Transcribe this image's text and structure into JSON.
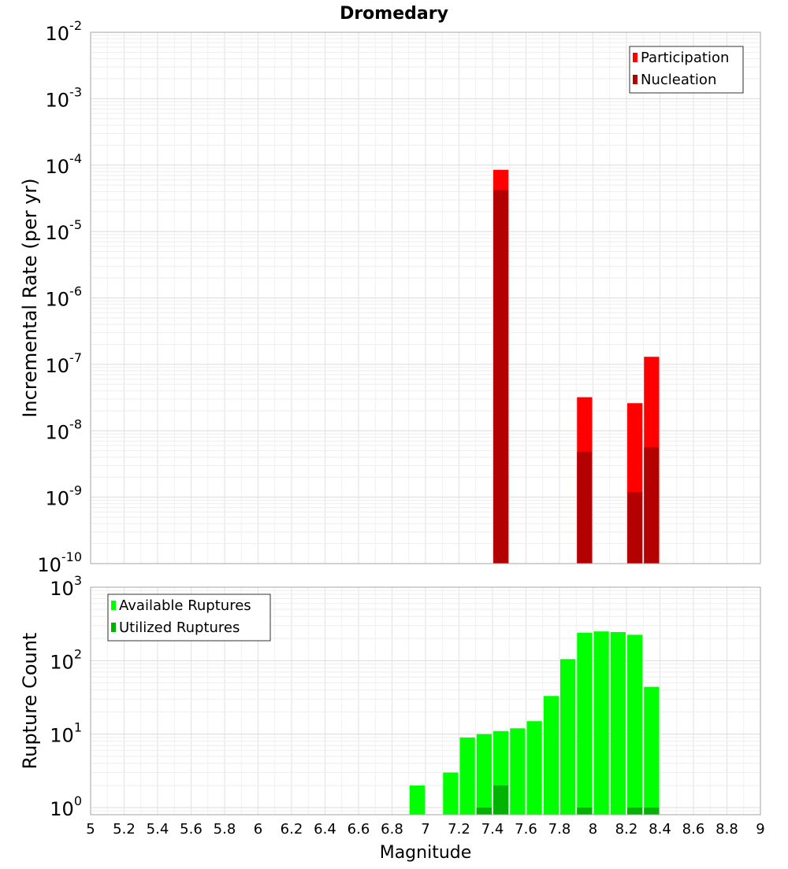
{
  "chart_data": [
    {
      "type": "bar",
      "title": "Dromedary",
      "ylabel": "Incremental Rate (per yr)",
      "yscale": "log",
      "ylim": [
        1e-10,
        0.01
      ],
      "xlim": [
        5,
        9
      ],
      "bin_width": 0.1,
      "ytick_exponents": [
        -2,
        -3,
        -4,
        -5,
        -6,
        -7,
        -8,
        -9,
        -10
      ],
      "grid": true,
      "legend_position": "top-right",
      "series": [
        {
          "name": "Participation",
          "color": "#ff0000",
          "points": [
            {
              "x": 7.45,
              "y": 8.5e-05
            },
            {
              "x": 7.95,
              "y": 3.2e-08
            },
            {
              "x": 8.25,
              "y": 2.6e-08
            },
            {
              "x": 8.35,
              "y": 1.3e-07
            }
          ]
        },
        {
          "name": "Nucleation",
          "color": "#b30000",
          "points": [
            {
              "x": 7.45,
              "y": 4.2e-05
            },
            {
              "x": 7.95,
              "y": 4.8e-09
            },
            {
              "x": 8.25,
              "y": 1.2e-09
            },
            {
              "x": 8.35,
              "y": 5.6e-09
            }
          ]
        }
      ]
    },
    {
      "type": "bar",
      "xlabel": "Magnitude",
      "ylabel": "Rupture Count",
      "yscale": "log",
      "ylim": [
        0.8,
        1000
      ],
      "xlim": [
        5,
        9
      ],
      "bin_width": 0.1,
      "ytick_exponents": [
        3,
        2,
        1,
        0
      ],
      "xticks": [
        "5",
        "5.2",
        "5.4",
        "5.6",
        "5.8",
        "6",
        "6.2",
        "6.4",
        "6.6",
        "6.8",
        "7",
        "7.2",
        "7.4",
        "7.6",
        "7.8",
        "8",
        "8.2",
        "8.4",
        "8.6",
        "8.8",
        "9"
      ],
      "grid": true,
      "legend_position": "top-left",
      "series": [
        {
          "name": "Available Ruptures",
          "color": "#00ff00",
          "points": [
            {
              "x": 6.95,
              "y": 2
            },
            {
              "x": 7.15,
              "y": 3
            },
            {
              "x": 7.25,
              "y": 9
            },
            {
              "x": 7.35,
              "y": 10
            },
            {
              "x": 7.45,
              "y": 11
            },
            {
              "x": 7.55,
              "y": 12
            },
            {
              "x": 7.65,
              "y": 15
            },
            {
              "x": 7.75,
              "y": 33
            },
            {
              "x": 7.85,
              "y": 105
            },
            {
              "x": 7.95,
              "y": 240
            },
            {
              "x": 8.05,
              "y": 250
            },
            {
              "x": 8.15,
              "y": 245
            },
            {
              "x": 8.25,
              "y": 225
            },
            {
              "x": 8.35,
              "y": 44
            }
          ]
        },
        {
          "name": "Utilized Ruptures",
          "color": "#00b300",
          "points": [
            {
              "x": 7.35,
              "y": 1
            },
            {
              "x": 7.45,
              "y": 2
            },
            {
              "x": 7.95,
              "y": 1
            },
            {
              "x": 8.25,
              "y": 1
            },
            {
              "x": 8.35,
              "y": 1
            }
          ]
        }
      ]
    }
  ]
}
